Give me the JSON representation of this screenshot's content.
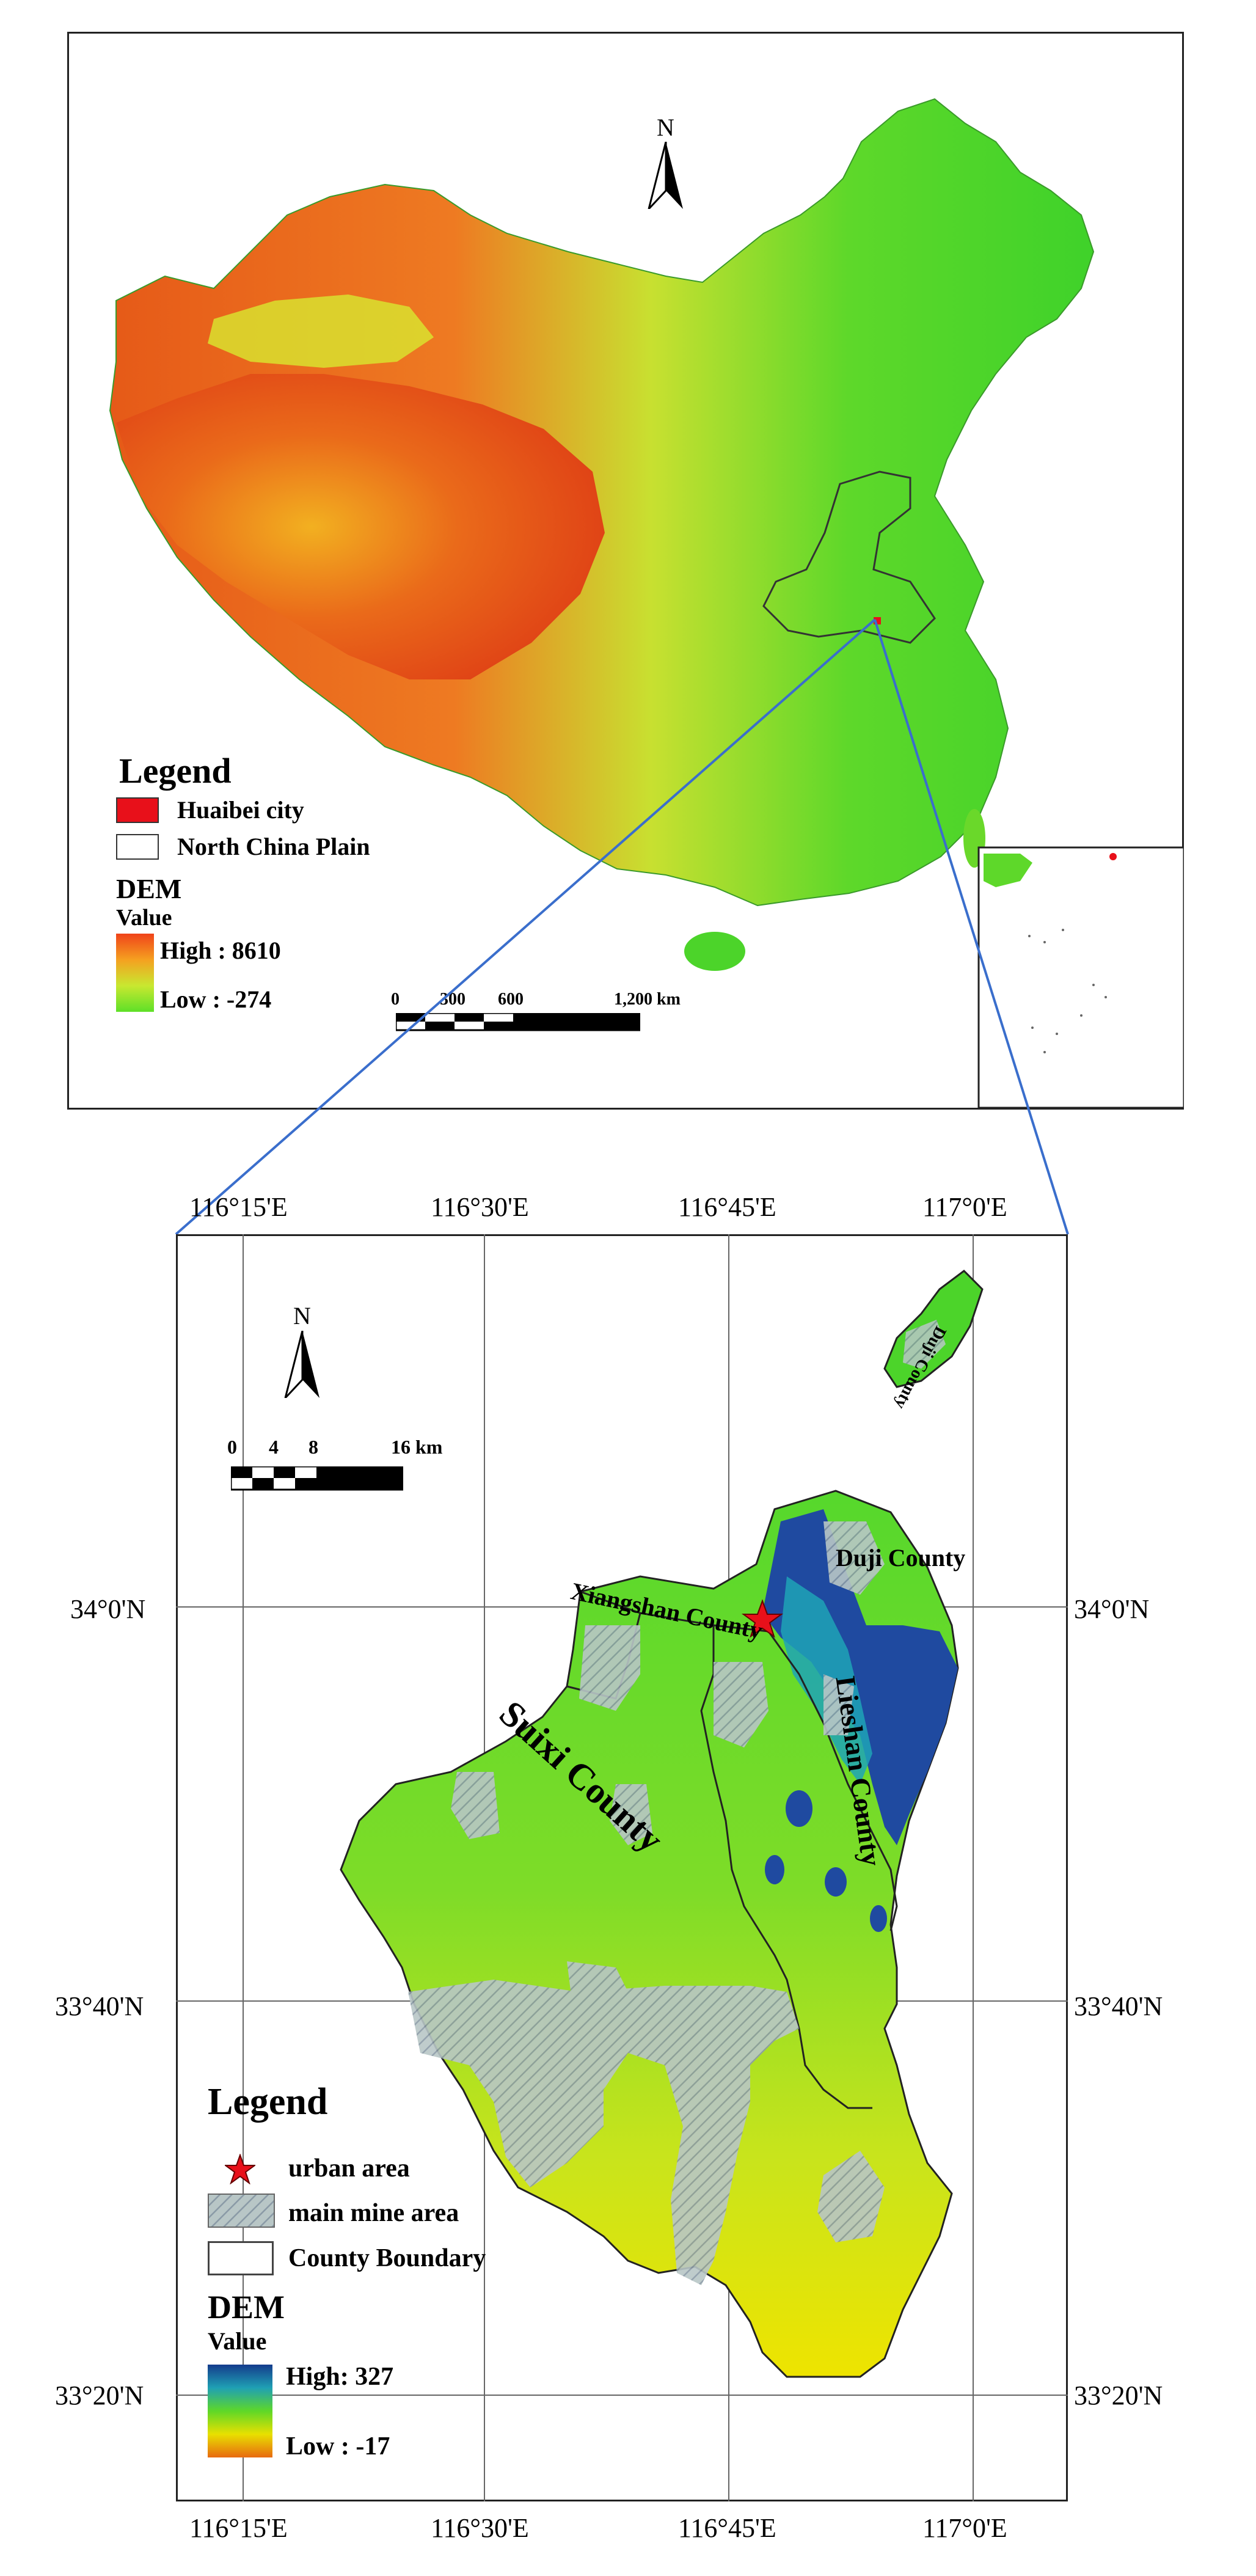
{
  "top_map": {
    "north_label": "N",
    "legend": {
      "title": "Legend",
      "items": [
        {
          "label": "Huaibei city",
          "color": "#e8101a"
        },
        {
          "label": "North China Plain",
          "color": "#ffffff"
        }
      ],
      "dem_title": "DEM",
      "dem_value": "Value",
      "dem_high": "High : 8610",
      "dem_low": "Low : -274",
      "ramp_colors": [
        "#f0431a",
        "#f5a020",
        "#c8e830",
        "#5ee028"
      ]
    },
    "scale": {
      "ticks": [
        "0",
        "300",
        "600",
        "1,200 km"
      ]
    }
  },
  "bottom_map": {
    "north_label": "N",
    "scale": {
      "ticks": [
        "0",
        "4",
        "8",
        "16 km"
      ]
    },
    "lon_labels": [
      "116°15'E",
      "116°30'E",
      "116°45'E",
      "117°0'E"
    ],
    "lat_labels": [
      "34°0'N",
      "33°40'N",
      "33°20'N"
    ],
    "counties": {
      "suixi": "Suixi County",
      "xiangshan": "Xiangshan County",
      "duji": "Duji County",
      "lieshan": "Lieshan County",
      "duji_north": "Duji County"
    },
    "legend": {
      "title": "Legend",
      "items": [
        {
          "label": "urban area"
        },
        {
          "label": "main mine area"
        },
        {
          "label": "County Boundary"
        }
      ],
      "dem_title": "DEM",
      "dem_value": "Value",
      "dem_high": "High: 327",
      "dem_low": "Low : -17",
      "ramp_colors": [
        "#143c8c",
        "#1fa0b4",
        "#5ed828",
        "#e8e000",
        "#e86a10"
      ]
    }
  }
}
